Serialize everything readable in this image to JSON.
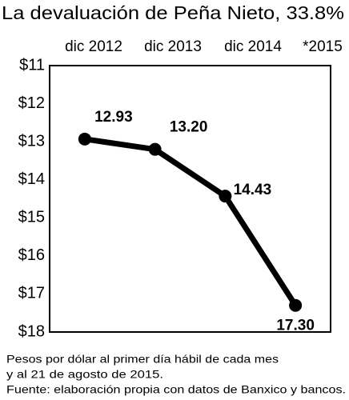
{
  "chart_data": {
    "type": "line",
    "title": "La devaluación de Peña Nieto, 33.8%",
    "categories": [
      "dic 2012",
      "dic 2013",
      "dic 2014",
      "*2015"
    ],
    "series": [
      {
        "name": "Pesos por dólar",
        "color": "#000000",
        "values": [
          12.93,
          13.2,
          14.43,
          17.3
        ],
        "value_labels": [
          "12.93",
          "13.20",
          "14.43",
          "17.30"
        ]
      }
    ],
    "ylim": [
      11,
      18
    ],
    "y_inverted": true,
    "yticks": [
      {
        "value": 11,
        "label": "$11"
      },
      {
        "value": 12,
        "label": "$12"
      },
      {
        "value": 13,
        "label": "$13"
      },
      {
        "value": 14,
        "label": "$14"
      },
      {
        "value": 15,
        "label": "$15"
      },
      {
        "value": 16,
        "label": "$16"
      },
      {
        "value": 17,
        "label": "$17"
      },
      {
        "value": 18,
        "label": "$18"
      }
    ],
    "grid": false,
    "notes": [
      "Pesos por dólar al primer día hábil de cada mes",
      "y al 21 de agosto de 2015.",
      "Fuente: elaboración propia con datos de Banxico y bancos."
    ]
  }
}
